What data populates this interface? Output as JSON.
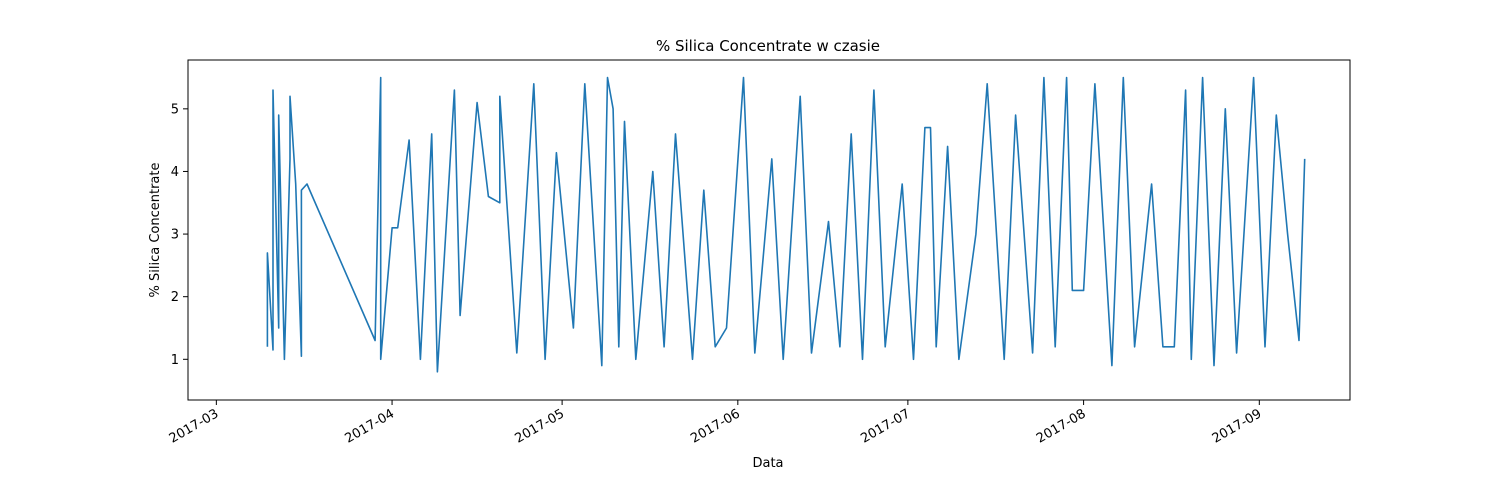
{
  "chart_data": {
    "type": "line",
    "title": "% Silica Concentrate w czasie",
    "xlabel": "Data",
    "ylabel": "% Silica Concentrate",
    "x_axis": {
      "kind": "date",
      "range": [
        "2017-02-24",
        "2017-09-17"
      ]
    },
    "ylim": [
      0.35,
      5.78
    ],
    "x_ticks": [
      "2017-03-01",
      "2017-04-01",
      "2017-05-01",
      "2017-06-01",
      "2017-07-01",
      "2017-08-01",
      "2017-09-01"
    ],
    "x_tick_labels": [
      "2017-03",
      "2017-04",
      "2017-05",
      "2017-06",
      "2017-07",
      "2017-08",
      "2017-09"
    ],
    "y_ticks": [
      1,
      2,
      3,
      4,
      5
    ],
    "grid": false,
    "legend": "none",
    "color": "#1f77b4",
    "series": [
      {
        "x": [
          "2017-03-10",
          "2017-03-10",
          "2017-03-11",
          "2017-03-11",
          "2017-03-12",
          "2017-03-12",
          "2017-03-13",
          "2017-03-14",
          "2017-03-14",
          "2017-03-15",
          "2017-03-16",
          "2017-03-16",
          "2017-03-17",
          "2017-03-29",
          "2017-03-30",
          "2017-03-30",
          "2017-04-01",
          "2017-04-02",
          "2017-04-04",
          "2017-04-06",
          "2017-04-08",
          "2017-04-09",
          "2017-04-12",
          "2017-04-13",
          "2017-04-16",
          "2017-04-18",
          "2017-04-20",
          "2017-04-20",
          "2017-04-23",
          "2017-04-26",
          "2017-04-28",
          "2017-04-30",
          "2017-05-03",
          "2017-05-05",
          "2017-05-08",
          "2017-05-09",
          "2017-05-10",
          "2017-05-11",
          "2017-05-12",
          "2017-05-14",
          "2017-05-17",
          "2017-05-19",
          "2017-05-21",
          "2017-05-24",
          "2017-05-26",
          "2017-05-28",
          "2017-05-30",
          "2017-06-02",
          "2017-06-04",
          "2017-06-07",
          "2017-06-09",
          "2017-06-12",
          "2017-06-14",
          "2017-06-17",
          "2017-06-19",
          "2017-06-21",
          "2017-06-23",
          "2017-06-25",
          "2017-06-27",
          "2017-06-30",
          "2017-07-02",
          "2017-07-04",
          "2017-07-05",
          "2017-07-06",
          "2017-07-08",
          "2017-07-10",
          "2017-07-13",
          "2017-07-15",
          "2017-07-18",
          "2017-07-20",
          "2017-07-23",
          "2017-07-25",
          "2017-07-27",
          "2017-07-29",
          "2017-07-30",
          "2017-08-01",
          "2017-08-03",
          "2017-08-06",
          "2017-08-08",
          "2017-08-10",
          "2017-08-13",
          "2017-08-15",
          "2017-08-17",
          "2017-08-19",
          "2017-08-20",
          "2017-08-22",
          "2017-08-24",
          "2017-08-26",
          "2017-08-28",
          "2017-08-31",
          "2017-09-02",
          "2017-09-04",
          "2017-09-06",
          "2017-09-08",
          "2017-09-09"
        ],
        "y": [
          1.2,
          2.7,
          1.15,
          5.3,
          1.5,
          4.9,
          1.0,
          4.2,
          5.2,
          3.8,
          1.05,
          3.7,
          3.8,
          1.3,
          5.5,
          1.0,
          3.1,
          3.1,
          4.5,
          1.0,
          4.6,
          0.8,
          5.3,
          1.7,
          5.1,
          3.6,
          3.5,
          5.2,
          1.1,
          5.4,
          1.0,
          4.3,
          1.5,
          5.4,
          0.9,
          5.5,
          5.0,
          1.2,
          4.8,
          1.0,
          4.0,
          1.2,
          4.6,
          1.0,
          3.7,
          1.2,
          1.5,
          5.5,
          1.1,
          4.2,
          1.0,
          5.2,
          1.1,
          3.2,
          1.2,
          4.6,
          1.0,
          5.3,
          1.2,
          3.8,
          1.0,
          4.7,
          4.7,
          1.2,
          4.4,
          1.0,
          3.0,
          5.4,
          1.0,
          4.9,
          1.1,
          5.5,
          1.2,
          5.5,
          2.1,
          2.1,
          5.4,
          0.9,
          5.5,
          1.2,
          3.8,
          1.2,
          1.2,
          5.3,
          1.0,
          5.5,
          0.9,
          5.0,
          1.1,
          5.5,
          1.2,
          4.9,
          3.0,
          1.3,
          4.2
        ]
      }
    ]
  }
}
